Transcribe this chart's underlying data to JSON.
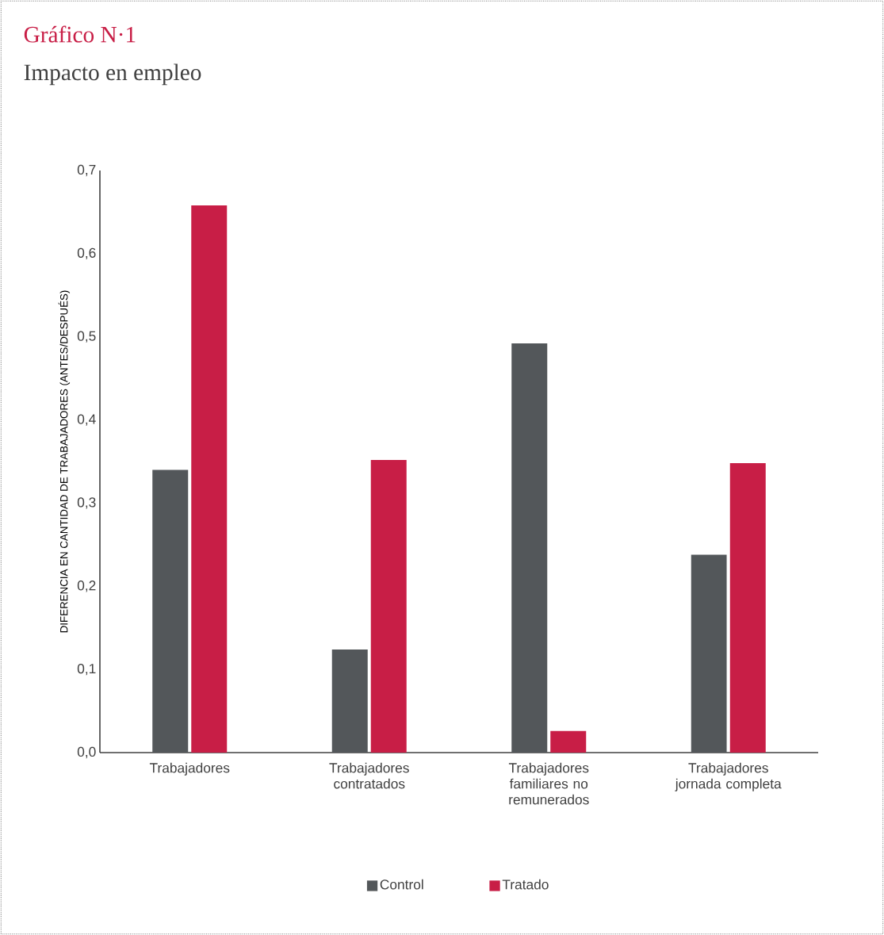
{
  "chart_data": {
    "type": "bar",
    "title": "Gráfico N·1",
    "subtitle": "Impacto en empleo",
    "ylabel": "DIFERENCIA EN CANTIDAD DE TRABAJADORES (ANTES/DESPUÉS)",
    "categories": [
      "Trabajadores",
      "Trabajadores contratados",
      "Trabajadores familiares no remunerados",
      "Trabajadores jornada completa"
    ],
    "series": [
      {
        "name": "Control",
        "color": "#53575a",
        "values": [
          0.34,
          0.124,
          0.492,
          0.238
        ]
      },
      {
        "name": "Tratado",
        "color": "#c81e46",
        "values": [
          0.658,
          0.352,
          0.026,
          0.348
        ]
      }
    ],
    "ylim": [
      0,
      0.7
    ],
    "yticks": [
      {
        "value": 0,
        "label": "0,0"
      },
      {
        "value": 0.1,
        "label": "0,1"
      },
      {
        "value": 0.2,
        "label": "0,2"
      },
      {
        "value": 0.3,
        "label": "0,3"
      },
      {
        "value": 0.4,
        "label": "0,4"
      },
      {
        "value": 0.5,
        "label": "0,5"
      },
      {
        "value": 0.6,
        "label": "0,6"
      },
      {
        "value": 0.7,
        "label": "0,7"
      }
    ],
    "legend": "bottom",
    "grid": false
  }
}
